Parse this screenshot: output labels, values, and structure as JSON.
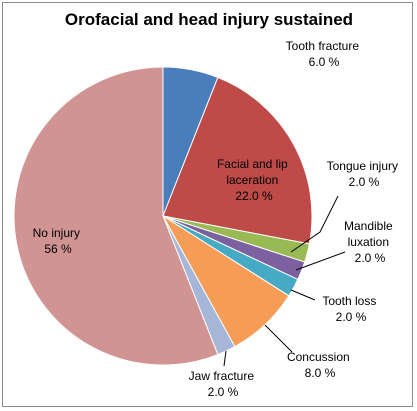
{
  "chart_data": {
    "type": "pie",
    "title": "Orofacial and head injury sustained",
    "start_angle_deg": 0,
    "direction": "clockwise",
    "legend": "none",
    "slices": [
      {
        "name": "Tooth fracture",
        "value": 6.0,
        "label": "6.0 %",
        "color": "#4a7ebb"
      },
      {
        "name": "Facial and lip laceration",
        "value": 22.0,
        "label": "22.0 %",
        "color": "#be4b48"
      },
      {
        "name": "Tongue injury",
        "value": 2.0,
        "label": "2.0 %",
        "color": "#98b954"
      },
      {
        "name": "Mandible luxation",
        "value": 2.0,
        "label": "2.0 %",
        "color": "#7d60a0"
      },
      {
        "name": "Tooth loss",
        "value": 2.0,
        "label": "2.0 %",
        "color": "#46aac5"
      },
      {
        "name": "Concussion",
        "value": 8.0,
        "label": "8.0 %",
        "color": "#f59d56"
      },
      {
        "name": "Jaw fracture",
        "value": 2.0,
        "label": "2.0 %",
        "color": "#a5b6d9"
      },
      {
        "name": "No injury",
        "value": 56,
        "label": "56 %",
        "color": "#d09493"
      }
    ]
  }
}
